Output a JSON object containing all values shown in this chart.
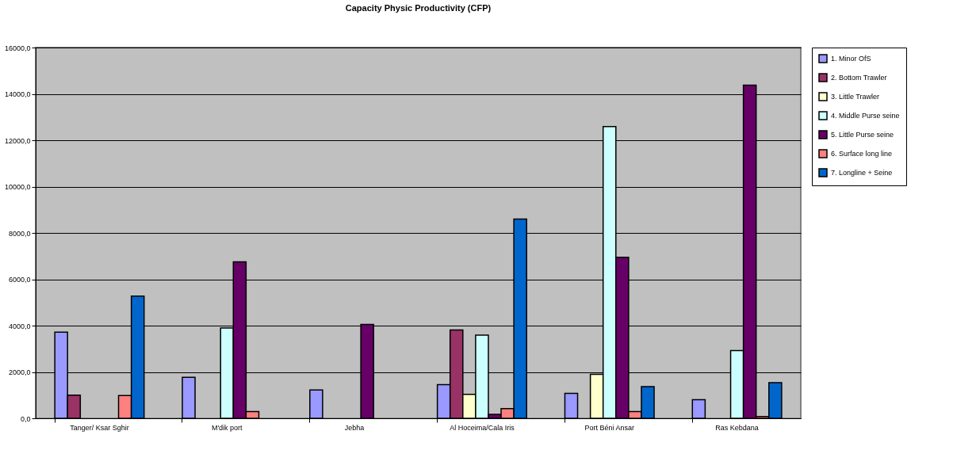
{
  "chart_data": {
    "type": "bar",
    "title": "Capacity Physic Productivity (CFP)",
    "categories": [
      "Tanger/ Ksar Sghir",
      "M'dik port",
      "Jebha",
      "Al Hoceima/Cala Iris",
      "Port Béni Ansar",
      "Ras Kebdana"
    ],
    "series": [
      {
        "name": "1. Minor  OfS",
        "color": "#9999ff",
        "values": [
          3720,
          1770,
          1220,
          1450,
          1080,
          800
        ]
      },
      {
        "name": "2. Bottom Trawler",
        "color": "#993366",
        "values": [
          1000,
          null,
          null,
          3810,
          null,
          null
        ]
      },
      {
        "name": "3. Little Trawler",
        "color": "#ffffcc",
        "values": [
          null,
          null,
          null,
          1030,
          1900,
          null
        ]
      },
      {
        "name": "4. Middle Purse seine",
        "color": "#ccffff",
        "values": [
          null,
          3900,
          null,
          3590,
          12590,
          2920
        ]
      },
      {
        "name": "5. Little Purse seine",
        "color": "#660066",
        "values": [
          null,
          6750,
          4050,
          170,
          6950,
          14380
        ]
      },
      {
        "name": "6. Surface long line",
        "color": "#ff8080",
        "values": [
          980,
          290,
          null,
          420,
          290,
          80
        ]
      },
      {
        "name": "7. Longline + Seine",
        "color": "#0066cc",
        "values": [
          5270,
          null,
          null,
          8600,
          1370,
          1540
        ]
      }
    ],
    "ylim": [
      0,
      16000
    ],
    "yticks": [
      {
        "value": 0,
        "label": "0,0"
      },
      {
        "value": 2000,
        "label": "2000,0"
      },
      {
        "value": 4000,
        "label": "4000,0"
      },
      {
        "value": 6000,
        "label": "6000,0"
      },
      {
        "value": 8000,
        "label": "8000,0"
      },
      {
        "value": 10000,
        "label": "10000,0"
      },
      {
        "value": 12000,
        "label": "12000,0"
      },
      {
        "value": 14000,
        "label": "14000,0"
      },
      {
        "value": 16000,
        "label": "16000,0"
      }
    ],
    "grid": "y",
    "legend": "right"
  }
}
